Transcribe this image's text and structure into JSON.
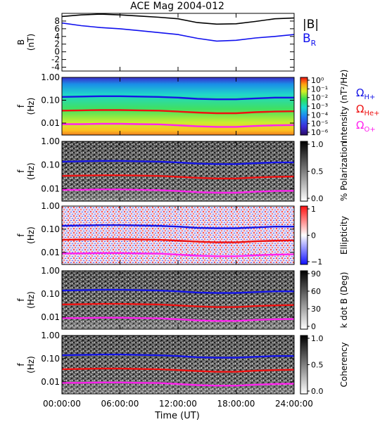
{
  "title": "ACE Mag 2004-012",
  "xlabel": "Time (UT)",
  "time_ticks": [
    "00:00:00",
    "06:00:00",
    "12:00:00",
    "18:00:00",
    "24:00:00"
  ],
  "colors": {
    "field_magnitude": "#000000",
    "field_radial": "#1010ee",
    "cyclotron_h": "#1515e6",
    "cyclotron_he": "#ee1111",
    "cyclotron_o": "#ff22ee"
  },
  "chart_data": [
    {
      "id": "field",
      "type": "line",
      "ylabel": [
        "B",
        "(nT)"
      ],
      "yticks": [
        "8",
        "6",
        "4",
        "2",
        "0",
        "-2",
        "-4"
      ],
      "ylim": [
        -5,
        10
      ],
      "x": [
        0,
        2,
        4,
        6,
        8,
        10,
        12,
        14,
        16,
        18,
        20,
        22,
        24
      ],
      "legend": [
        "|B|",
        "B",
        "R"
      ],
      "series": [
        {
          "key": "magnitude",
          "values": [
            9.2,
            9.6,
            9.8,
            9.6,
            9.3,
            9.0,
            8.6,
            7.6,
            7.2,
            7.3,
            7.9,
            8.6,
            8.8
          ]
        },
        {
          "key": "radial",
          "values": [
            7.5,
            6.8,
            6.3,
            6.0,
            5.5,
            5.0,
            4.5,
            3.5,
            2.8,
            3.0,
            3.6,
            4.0,
            4.5
          ]
        }
      ]
    },
    {
      "id": "intensity",
      "type": "heatmap",
      "ylabel": [
        "f",
        "(Hz)"
      ],
      "yticks": [
        "1.00",
        "0.10",
        "0.01"
      ],
      "ylim": [
        0.003,
        1.0
      ],
      "yscale": "log",
      "colorbar_label": "Intensity (nT²/Hz)",
      "colorbar_ticks": [
        "10⁰",
        "10⁻¹",
        "10⁻²",
        "10⁻³",
        "10⁻⁴",
        "10⁻⁵",
        "10⁻⁶"
      ],
      "colormap": "rainbow",
      "legend": [
        {
          "symbol": "Ω",
          "sub": "H+"
        },
        {
          "symbol": "Ω",
          "sub": "He+"
        },
        {
          "symbol": "Ω",
          "sub": "O+"
        }
      ]
    },
    {
      "id": "polarization",
      "type": "heatmap",
      "ylabel": [
        "f",
        "(Hz)"
      ],
      "yticks": [
        "1.00",
        "0.10",
        "0.01"
      ],
      "ylim": [
        0.003,
        1.0
      ],
      "yscale": "log",
      "colorbar_label": "% Polarization",
      "colorbar_ticks": [
        "1.0",
        "0.5",
        "0.0"
      ],
      "colormap": "gray"
    },
    {
      "id": "ellipticity",
      "type": "heatmap",
      "ylabel": [
        "f",
        "(Hz)"
      ],
      "yticks": [
        "1.00",
        "0.10",
        "0.01"
      ],
      "ylim": [
        0.003,
        1.0
      ],
      "yscale": "log",
      "colorbar_label": "Ellipticity",
      "colorbar_ticks": [
        "1",
        "0",
        "−1"
      ],
      "colormap": "bwr"
    },
    {
      "id": "kdotb",
      "type": "heatmap",
      "ylabel": [
        "f",
        "(Hz)"
      ],
      "yticks": [
        "1.00",
        "0.10",
        "0.01"
      ],
      "ylim": [
        0.003,
        1.0
      ],
      "yscale": "log",
      "colorbar_label": "k dot B (Deg)",
      "colorbar_ticks": [
        "90",
        "60",
        "30",
        "0"
      ],
      "colormap": "gray"
    },
    {
      "id": "coherency",
      "type": "heatmap",
      "ylabel": [
        "f",
        "(Hz)"
      ],
      "yticks": [
        "1.00",
        "0.10",
        "0.01"
      ],
      "ylim": [
        0.003,
        1.0
      ],
      "yscale": "log",
      "colorbar_label": "Coherency",
      "colorbar_ticks": [
        "1.0",
        "0.5",
        "0.0"
      ],
      "colormap": "gray"
    }
  ],
  "gyrofrequency_curves": {
    "x": [
      0,
      2,
      4,
      6,
      8,
      10,
      12,
      14,
      16,
      18,
      20,
      22,
      24
    ],
    "H+": [
      0.14,
      0.145,
      0.15,
      0.15,
      0.145,
      0.14,
      0.13,
      0.115,
      0.11,
      0.11,
      0.12,
      0.13,
      0.13
    ],
    "He+": [
      0.035,
      0.036,
      0.037,
      0.037,
      0.036,
      0.035,
      0.032,
      0.029,
      0.027,
      0.027,
      0.03,
      0.032,
      0.033
    ],
    "O+": [
      0.009,
      0.009,
      0.0093,
      0.0093,
      0.009,
      0.0088,
      0.008,
      0.0072,
      0.0068,
      0.0068,
      0.0075,
      0.008,
      0.0082
    ]
  }
}
